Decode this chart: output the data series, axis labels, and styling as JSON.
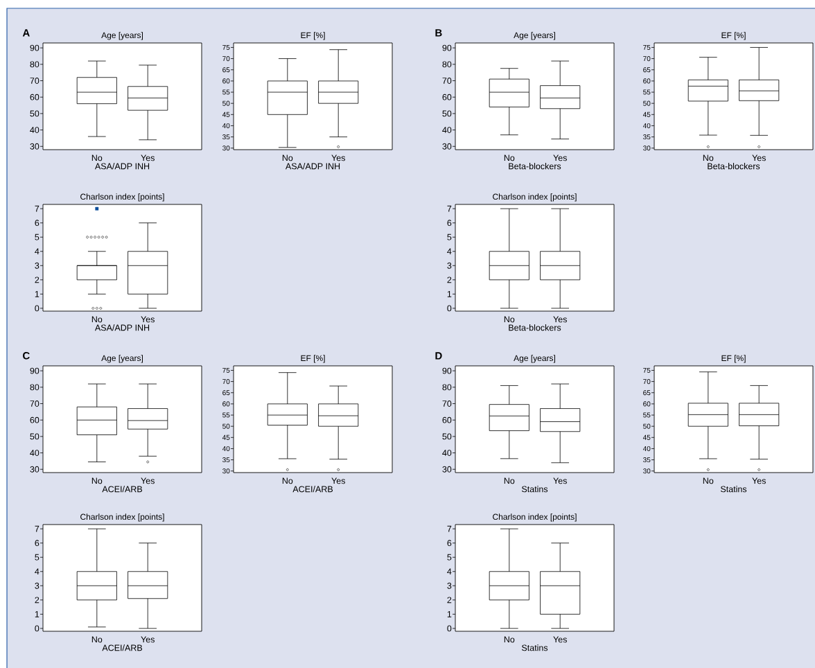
{
  "chart_data": [
    {
      "type": "box",
      "title": "Age [years]",
      "xlabel": "ASA/ADP INH",
      "annotations": [
        "A"
      ],
      "categories": [
        "No",
        "Yes"
      ],
      "ylim": [
        28,
        93
      ],
      "yticks": [
        30,
        40,
        50,
        60,
        70,
        80,
        90
      ],
      "boxes": [
        {
          "low": 36,
          "q1": 56,
          "median": 63,
          "q3": 72,
          "high": 82
        },
        {
          "low": 34,
          "q1": 52,
          "median": 59.5,
          "q3": 66.5,
          "high": 79.5
        }
      ]
    },
    {
      "type": "box",
      "title": "EF [%]",
      "xlabel": "ASA/ADP INH",
      "categories": [
        "No",
        "Yes"
      ],
      "ylim": [
        29.3,
        77
      ],
      "yticks": [
        30,
        35,
        40,
        45,
        50,
        55,
        60,
        65,
        70,
        75
      ],
      "boxes": [
        {
          "low": 30.3,
          "q1": 45,
          "median": 55,
          "q3": 60,
          "high": 70
        },
        {
          "low": 35,
          "q1": 50,
          "median": 55,
          "q3": 60,
          "high": 74,
          "outliers": [
            30.6
          ]
        }
      ]
    },
    {
      "type": "box",
      "title": "Charlson index [points]",
      "xlabel": "ASA/ADP INH",
      "categories": [
        "No",
        "Yes"
      ],
      "ylim": [
        -0.2,
        7.3
      ],
      "yticks": [
        0,
        1,
        2,
        3,
        4,
        5,
        6,
        7
      ],
      "boxes": [
        {
          "low": 1,
          "q1": 2,
          "median": 3,
          "q3": 3,
          "high": 4,
          "outliers": [
            5,
            5,
            5,
            5,
            5,
            5,
            0,
            0,
            0
          ]
        },
        {
          "low": 0,
          "q1": 1,
          "median": 3,
          "q3": 4,
          "high": 6
        }
      ],
      "series": [
        {
          "type": "scatter",
          "x": [
            "No"
          ],
          "values": [
            7
          ],
          "color": "#0b4d9b",
          "marker": "square"
        }
      ]
    },
    {
      "type": "box",
      "title": "Age [years]",
      "xlabel": "Beta-blockers",
      "annotations": [
        "B"
      ],
      "categories": [
        "No",
        "Yes"
      ],
      "ylim": [
        28,
        93
      ],
      "yticks": [
        30,
        40,
        50,
        60,
        70,
        80,
        90
      ],
      "boxes": [
        {
          "low": 37,
          "q1": 54,
          "median": 63,
          "q3": 71,
          "high": 77.5
        },
        {
          "low": 34.5,
          "q1": 53,
          "median": 59.5,
          "q3": 67,
          "high": 82
        }
      ]
    },
    {
      "type": "box",
      "title": "EF [%]",
      "xlabel": "Beta-blockers",
      "categories": [
        "No",
        "Yes"
      ],
      "ylim": [
        29.3,
        77
      ],
      "yticks": [
        30,
        35,
        40,
        45,
        50,
        55,
        60,
        65,
        70,
        75
      ],
      "boxes": [
        {
          "low": 35.8,
          "q1": 51,
          "median": 57.7,
          "q3": 60.5,
          "high": 70.6,
          "outliers": [
            30.6
          ]
        },
        {
          "low": 35.7,
          "q1": 51.2,
          "median": 55.6,
          "q3": 60.5,
          "high": 75,
          "outliers": [
            30.6
          ]
        }
      ]
    },
    {
      "type": "box",
      "title": "Charlson index [points]",
      "xlabel": "Beta-blockers",
      "categories": [
        "No",
        "Yes"
      ],
      "ylim": [
        -0.2,
        7.3
      ],
      "yticks": [
        0,
        1,
        2,
        3,
        4,
        5,
        6,
        7
      ],
      "boxes": [
        {
          "low": 0,
          "q1": 2,
          "median": 3,
          "q3": 4,
          "high": 7
        },
        {
          "low": 0,
          "q1": 2,
          "median": 3,
          "q3": 4,
          "high": 7
        }
      ]
    },
    {
      "type": "box",
      "title": "Age [years]",
      "xlabel": "ACEI/ARB",
      "annotations": [
        "C"
      ],
      "categories": [
        "No",
        "Yes"
      ],
      "ylim": [
        28,
        93
      ],
      "yticks": [
        30,
        40,
        50,
        60,
        70,
        80,
        90
      ],
      "boxes": [
        {
          "low": 34.5,
          "q1": 51,
          "median": 60,
          "q3": 68,
          "high": 82
        },
        {
          "low": 38,
          "q1": 54.5,
          "median": 59.7,
          "q3": 67,
          "high": 82,
          "outliers": [
            34.5
          ]
        }
      ]
    },
    {
      "type": "box",
      "title": "EF [%]",
      "xlabel": "ACEI/ARB",
      "categories": [
        "No",
        "Yes"
      ],
      "ylim": [
        29.3,
        77
      ],
      "yticks": [
        30,
        35,
        40,
        45,
        50,
        55,
        60,
        65,
        70,
        75
      ],
      "boxes": [
        {
          "low": 35.5,
          "q1": 50.5,
          "median": 55,
          "q3": 60,
          "high": 74,
          "outliers": [
            30.6
          ]
        },
        {
          "low": 35.3,
          "q1": 50,
          "median": 54.7,
          "q3": 60,
          "high": 68,
          "outliers": [
            30.6
          ]
        }
      ]
    },
    {
      "type": "box",
      "title": "Charlson index [points]",
      "xlabel": "ACEI/ARB",
      "categories": [
        "No",
        "Yes"
      ],
      "ylim": [
        -0.2,
        7.3
      ],
      "yticks": [
        0,
        1,
        2,
        3,
        4,
        5,
        6,
        7
      ],
      "boxes": [
        {
          "low": 0.1,
          "q1": 2,
          "median": 3,
          "q3": 4,
          "high": 7
        },
        {
          "low": 0,
          "q1": 2.1,
          "median": 3,
          "q3": 4,
          "high": 6
        }
      ]
    },
    {
      "type": "box",
      "title": "Age [years]",
      "xlabel": "Statins",
      "annotations": [
        "D"
      ],
      "categories": [
        "No",
        "Yes"
      ],
      "ylim": [
        28,
        93
      ],
      "yticks": [
        30,
        40,
        50,
        60,
        70,
        80,
        90
      ],
      "boxes": [
        {
          "low": 36.5,
          "q1": 53.5,
          "median": 62.5,
          "q3": 69.5,
          "high": 81
        },
        {
          "low": 34,
          "q1": 53,
          "median": 59,
          "q3": 67,
          "high": 82
        }
      ]
    },
    {
      "type": "box",
      "title": "EF [%]",
      "xlabel": "Statins",
      "categories": [
        "No",
        "Yes"
      ],
      "ylim": [
        29.3,
        77
      ],
      "yticks": [
        30,
        35,
        40,
        45,
        50,
        55,
        60,
        65,
        70,
        75
      ],
      "boxes": [
        {
          "low": 35.5,
          "q1": 50,
          "median": 55.2,
          "q3": 60.3,
          "high": 74.3,
          "outliers": [
            30.6
          ]
        },
        {
          "low": 35.3,
          "q1": 50.2,
          "median": 55.2,
          "q3": 60.3,
          "high": 68.2,
          "outliers": [
            30.6
          ]
        }
      ]
    },
    {
      "type": "box",
      "title": "Charlson index [points]",
      "xlabel": "Statins",
      "categories": [
        "No",
        "Yes"
      ],
      "ylim": [
        -0.2,
        7.3
      ],
      "yticks": [
        0,
        1,
        2,
        3,
        4,
        5,
        6,
        7
      ],
      "boxes": [
        {
          "low": 0,
          "q1": 2,
          "median": 3,
          "q3": 4,
          "high": 7
        },
        {
          "low": 0,
          "q1": 1,
          "median": 3,
          "q3": 4,
          "high": 6
        }
      ]
    }
  ]
}
